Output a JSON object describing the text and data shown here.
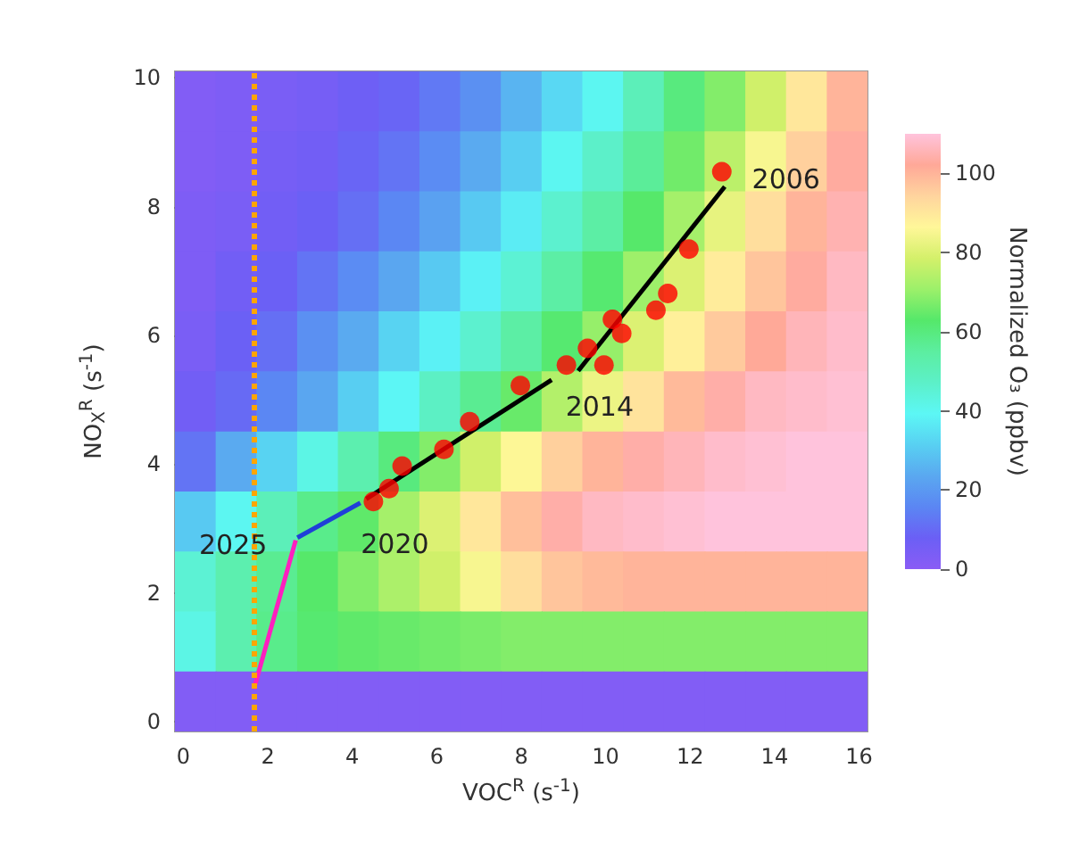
{
  "chart_data": {
    "type": "heatmap",
    "xlabel": "VOC$^{R}$ (s$^{-1}$)",
    "ylabel": "NO$_{X}$$^{R}$ (s$^{-1}$)",
    "clabel": "Normalized O₃ (ppbv)",
    "xlim": [
      -0.2,
      16.2
    ],
    "ylim": [
      -0.15,
      10.1
    ],
    "xticks": [
      0,
      2,
      4,
      6,
      8,
      10,
      12,
      14,
      16
    ],
    "yticks": [
      0,
      2,
      4,
      6,
      8,
      10
    ],
    "clim": [
      0,
      110
    ],
    "cticks": [
      0,
      20,
      40,
      60,
      80,
      100
    ],
    "cells": [
      [
        2,
        3,
        4,
        5,
        7,
        9,
        13,
        18,
        26,
        33,
        40,
        50,
        60,
        68,
        78,
        90,
        100
      ],
      [
        2,
        3,
        5,
        6,
        9,
        12,
        17,
        24,
        31,
        40,
        47,
        56,
        66,
        75,
        85,
        95,
        103
      ],
      [
        3,
        4,
        6,
        8,
        11,
        16,
        22,
        30,
        37,
        46,
        54,
        63,
        72,
        82,
        92,
        100,
        105
      ],
      [
        3,
        6,
        8,
        12,
        17,
        23,
        30,
        38,
        45,
        54,
        62,
        71,
        80,
        89,
        97,
        103,
        107
      ],
      [
        4,
        8,
        11,
        18,
        24,
        32,
        38,
        46,
        54,
        62,
        70,
        80,
        88,
        96,
        102,
        106,
        108
      ],
      [
        6,
        10,
        16,
        23,
        31,
        39,
        48,
        57,
        65,
        74,
        83,
        91,
        99,
        104,
        107,
        108,
        109
      ],
      [
        12,
        24,
        32,
        42,
        52,
        60,
        68,
        78,
        86,
        95,
        100,
        104,
        106,
        108,
        109,
        110,
        110
      ],
      [
        30,
        40,
        50,
        58,
        64,
        72,
        80,
        90,
        98,
        104,
        107,
        108,
        109,
        110,
        110,
        110,
        110
      ],
      [
        45,
        52,
        57,
        63,
        68,
        73,
        78,
        85,
        92,
        97,
        99,
        100,
        100,
        100,
        100,
        100,
        100
      ],
      [
        42,
        52,
        58,
        62,
        64,
        65,
        66,
        67,
        68,
        68,
        68,
        68,
        68,
        68,
        68,
        68,
        68
      ],
      [
        2,
        2,
        2,
        2,
        2,
        2,
        2,
        2,
        2,
        2,
        2,
        2,
        2,
        2,
        2,
        2,
        2
      ]
    ],
    "series": [
      {
        "type": "scatter",
        "color": "#ff0000",
        "marker": "circle",
        "x": [
          12.75,
          11.97,
          11.47,
          11.19,
          10.38,
          10.16,
          9.96,
          9.57,
          9.07,
          7.98,
          6.78,
          6.17,
          5.18,
          4.87,
          4.5
        ],
        "values": [
          8.54,
          7.34,
          6.65,
          6.39,
          6.03,
          6.25,
          5.54,
          5.8,
          5.54,
          5.22,
          4.66,
          4.23,
          3.97,
          3.62,
          3.42
        ]
      },
      {
        "type": "line",
        "color": "#000000",
        "x": [
          12.82,
          9.35
        ],
        "values": [
          8.31,
          5.45
        ]
      },
      {
        "type": "line",
        "color": "#000000",
        "x": [
          8.72,
          4.33
        ],
        "values": [
          5.31,
          3.46
        ]
      },
      {
        "type": "line",
        "color": "#1f3fd8",
        "x": [
          4.19,
          2.7
        ],
        "values": [
          3.4,
          2.86
        ]
      },
      {
        "type": "line",
        "color": "#ff1fbf",
        "x": [
          2.66,
          1.67
        ],
        "values": [
          2.82,
          0.51
        ]
      }
    ],
    "ref_lines": [
      {
        "axis": "x",
        "value": 1.65,
        "color": "#ffa500",
        "line_style": "dotted"
      }
    ],
    "annotations": [
      {
        "text": "2006",
        "x": 12.75,
        "y": 8.54
      },
      {
        "text": "2014",
        "x": 9.35,
        "y": 5.45
      },
      {
        "text": "2020",
        "x": 4.5,
        "y": 3.42
      },
      {
        "text": "2025",
        "x": 2.7,
        "y": 2.86
      }
    ]
  }
}
